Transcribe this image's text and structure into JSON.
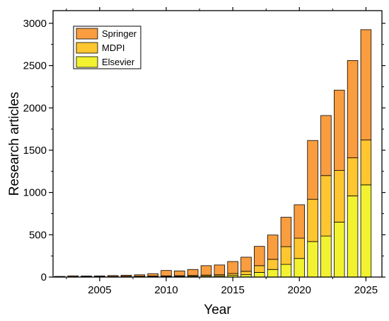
{
  "chart_data": {
    "type": "bar",
    "stacked": true,
    "title": "",
    "xlabel": "Year",
    "ylabel": "Research articles",
    "xlim": [
      2001.5,
      2026.2
    ],
    "ylim": [
      0,
      3150
    ],
    "xticks": [
      2005,
      2010,
      2015,
      2020,
      2025
    ],
    "yticks": [
      0,
      500,
      1000,
      1500,
      2000,
      2500,
      3000
    ],
    "grid": false,
    "legend_position": "top-left",
    "x": [
      2002,
      2003,
      2004,
      2005,
      2006,
      2007,
      2008,
      2009,
      2010,
      2011,
      2012,
      2013,
      2014,
      2015,
      2016,
      2017,
      2018,
      2019,
      2020,
      2021,
      2022,
      2023,
      2024,
      2025
    ],
    "series": [
      {
        "name": "Elsevier",
        "color": "#f2f230",
        "values": [
          2,
          3,
          4,
          3,
          4,
          5,
          5,
          6,
          7,
          8,
          9,
          12,
          14,
          20,
          28,
          55,
          90,
          150,
          220,
          420,
          485,
          650,
          960,
          1090
        ]
      },
      {
        "name": "MDPI",
        "color": "#ffc62f",
        "values": [
          1,
          2,
          2,
          3,
          3,
          4,
          5,
          6,
          7,
          8,
          10,
          12,
          14,
          22,
          40,
          80,
          120,
          210,
          240,
          500,
          715,
          610,
          450,
          530
        ]
      },
      {
        "name": "Springer",
        "color": "#fa9d3f",
        "values": [
          5,
          10,
          7,
          8,
          11,
          13,
          17,
          28,
          64,
          57,
          71,
          111,
          115,
          142,
          167,
          228,
          287,
          347,
          395,
          695,
          710,
          950,
          1150,
          1305
        ]
      }
    ]
  }
}
